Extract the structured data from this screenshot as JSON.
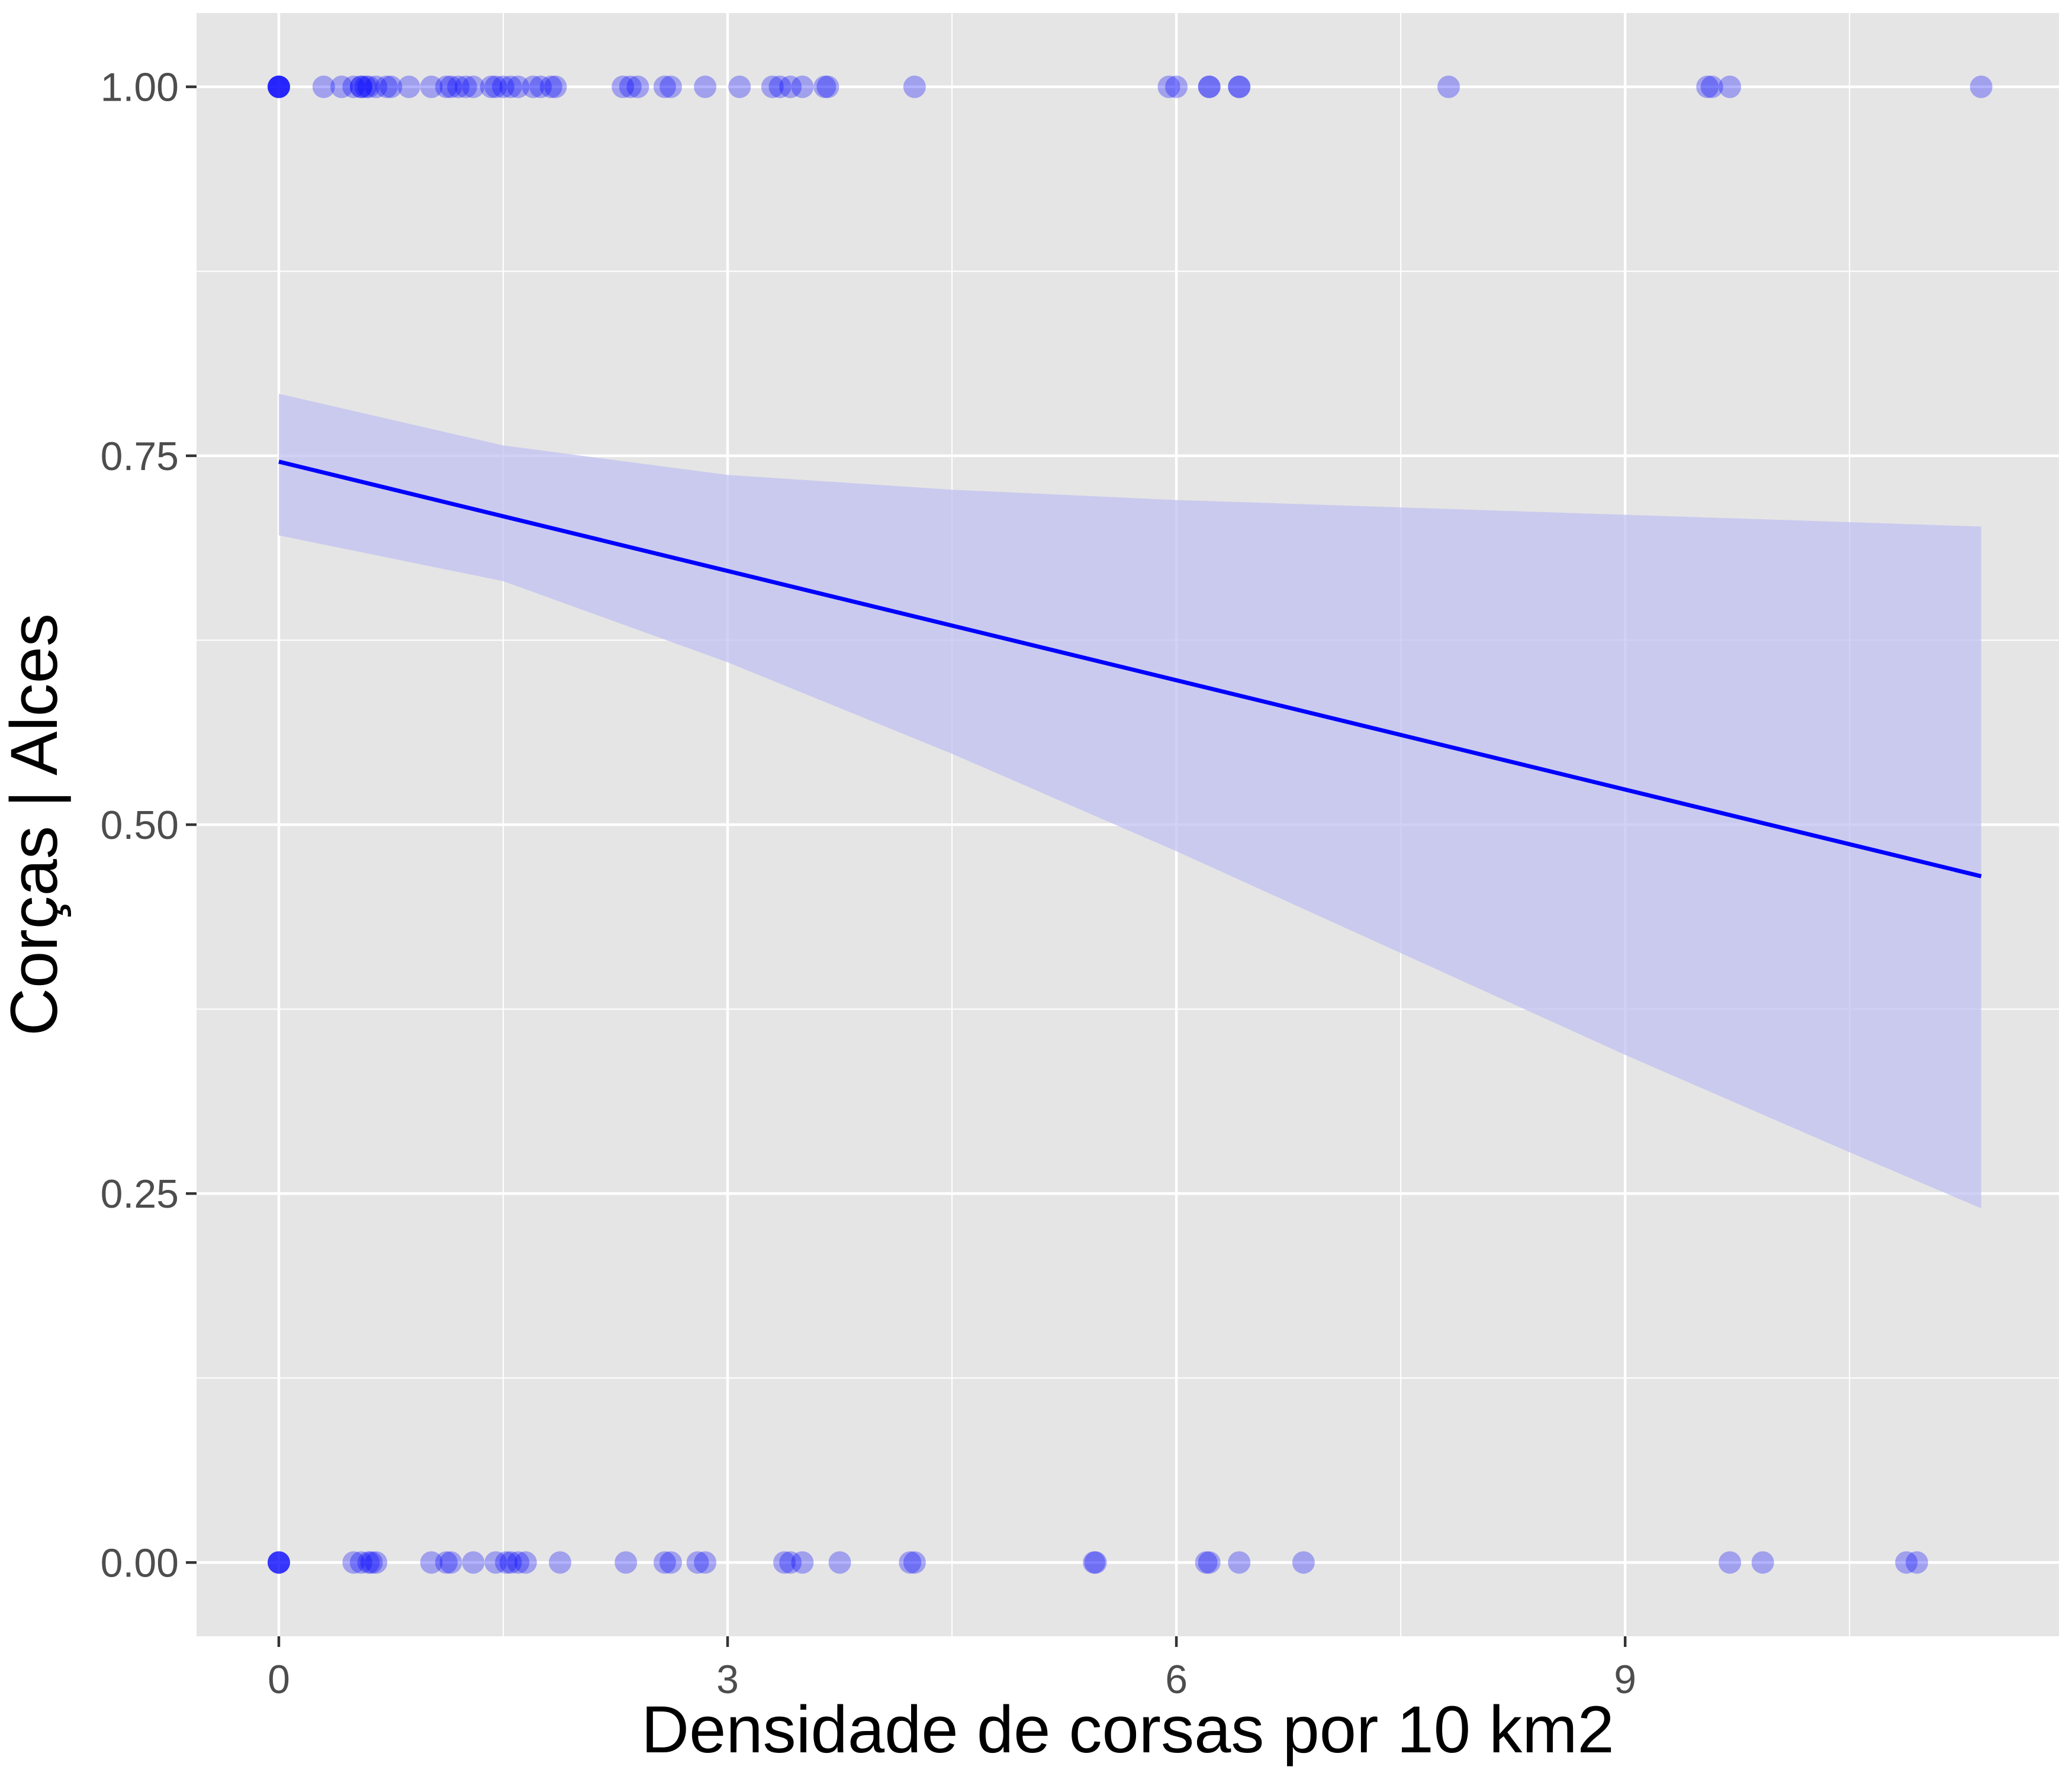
{
  "chart_data": {
    "type": "scatter",
    "title": "",
    "xlabel": "Densidade de corsas por 10 km2",
    "ylabel": "Corças | Alces",
    "xlim": [
      -0.55,
      11.9
    ],
    "ylim": [
      -0.05,
      1.05
    ],
    "x_ticks": [
      0,
      3,
      6,
      9
    ],
    "x_tick_labels": [
      "0",
      "3",
      "6",
      "9"
    ],
    "y_ticks": [
      0,
      0.25,
      0.5,
      0.75,
      1
    ],
    "y_tick_labels": [
      "0.00",
      "0.25",
      "0.50",
      "0.75",
      "1.00"
    ],
    "grid": true,
    "legend": "none",
    "colors": {
      "panel_background": "#e5e5e5",
      "grid": "#ffffff",
      "points": "#0000ff",
      "fit_line": "#0000ff",
      "confidence_band": "#bfbff2",
      "tick_labels": "#4d4d4d",
      "axis_title": "#000000"
    },
    "series": [
      {
        "kind": "points",
        "points": [
          [
            0,
            1
          ],
          [
            0,
            1
          ],
          [
            0,
            1
          ],
          [
            0,
            1
          ],
          [
            0,
            1
          ],
          [
            0.3,
            1
          ],
          [
            0.42,
            1
          ],
          [
            0.5,
            1
          ],
          [
            0.55,
            1
          ],
          [
            0.55,
            1
          ],
          [
            0.58,
            1
          ],
          [
            0.6,
            1
          ],
          [
            0.65,
            1
          ],
          [
            0.72,
            1
          ],
          [
            0.75,
            1
          ],
          [
            0.87,
            1
          ],
          [
            1.02,
            1
          ],
          [
            1.12,
            1
          ],
          [
            1.15,
            1
          ],
          [
            1.2,
            1
          ],
          [
            1.25,
            1
          ],
          [
            1.3,
            1
          ],
          [
            1.42,
            1
          ],
          [
            1.45,
            1
          ],
          [
            1.5,
            1
          ],
          [
            1.55,
            1
          ],
          [
            1.6,
            1
          ],
          [
            1.7,
            1
          ],
          [
            1.75,
            1
          ],
          [
            1.82,
            1
          ],
          [
            1.85,
            1
          ],
          [
            2.3,
            1
          ],
          [
            2.35,
            1
          ],
          [
            2.4,
            1
          ],
          [
            2.58,
            1
          ],
          [
            2.62,
            1
          ],
          [
            2.85,
            1
          ],
          [
            3.08,
            1
          ],
          [
            3.3,
            1
          ],
          [
            3.35,
            1
          ],
          [
            3.42,
            1
          ],
          [
            3.5,
            1
          ],
          [
            3.65,
            1
          ],
          [
            3.67,
            1
          ],
          [
            4.25,
            1
          ],
          [
            5.95,
            1
          ],
          [
            6.0,
            1
          ],
          [
            6.22,
            1
          ],
          [
            6.22,
            1
          ],
          [
            6.42,
            1
          ],
          [
            6.42,
            1
          ],
          [
            7.82,
            1
          ],
          [
            9.55,
            1
          ],
          [
            9.58,
            1
          ],
          [
            9.7,
            1
          ],
          [
            11.38,
            1
          ],
          [
            0,
            0
          ],
          [
            0,
            0
          ],
          [
            0,
            0
          ],
          [
            0,
            0
          ],
          [
            0.5,
            0
          ],
          [
            0.55,
            0
          ],
          [
            0.6,
            0
          ],
          [
            0.62,
            0
          ],
          [
            0.65,
            0
          ],
          [
            1.02,
            0
          ],
          [
            1.12,
            0
          ],
          [
            1.15,
            0
          ],
          [
            1.3,
            0
          ],
          [
            1.45,
            0
          ],
          [
            1.52,
            0
          ],
          [
            1.55,
            0
          ],
          [
            1.6,
            0
          ],
          [
            1.65,
            0
          ],
          [
            1.88,
            0
          ],
          [
            2.32,
            0
          ],
          [
            2.58,
            0
          ],
          [
            2.62,
            0
          ],
          [
            2.8,
            0
          ],
          [
            2.85,
            0
          ],
          [
            3.38,
            0
          ],
          [
            3.42,
            0
          ],
          [
            3.5,
            0
          ],
          [
            3.75,
            0
          ],
          [
            4.22,
            0
          ],
          [
            4.25,
            0
          ],
          [
            5.45,
            0
          ],
          [
            5.46,
            0
          ],
          [
            6.2,
            0
          ],
          [
            6.22,
            0
          ],
          [
            6.42,
            0
          ],
          [
            6.85,
            0
          ],
          [
            9.7,
            0
          ],
          [
            9.92,
            0
          ],
          [
            10.88,
            0
          ],
          [
            10.95,
            0
          ]
        ]
      },
      {
        "kind": "fit_line",
        "x": [
          0,
          11.38
        ],
        "y": [
          0.746,
          0.465
        ]
      },
      {
        "kind": "confidence_band",
        "x": [
          0,
          1.5,
          3,
          4.5,
          6,
          7.5,
          9,
          10.5,
          11.38
        ],
        "upper": [
          0.792,
          0.757,
          0.737,
          0.727,
          0.72,
          0.715,
          0.71,
          0.705,
          0.702
        ],
        "lower": [
          0.696,
          0.665,
          0.61,
          0.548,
          0.482,
          0.413,
          0.344,
          0.278,
          0.24
        ]
      }
    ]
  }
}
